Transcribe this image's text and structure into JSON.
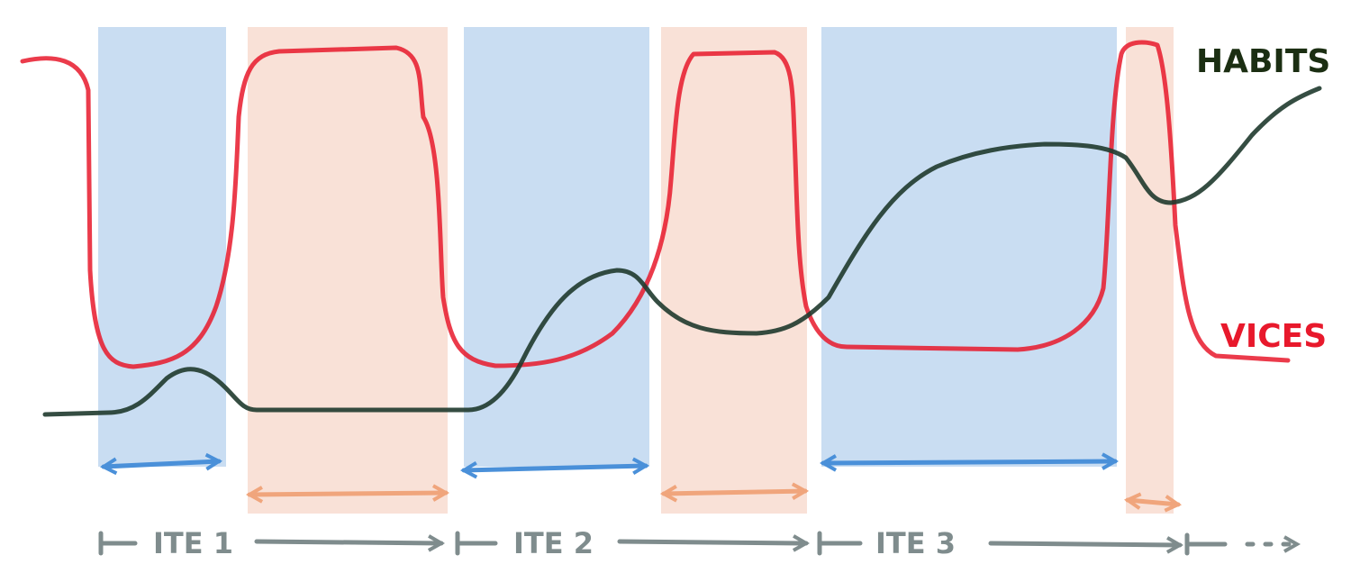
{
  "labels": {
    "habits": "HABITS",
    "vices": "VICES"
  },
  "iterations": [
    "ITE 1",
    "ITE 2",
    "ITE 3"
  ]
}
